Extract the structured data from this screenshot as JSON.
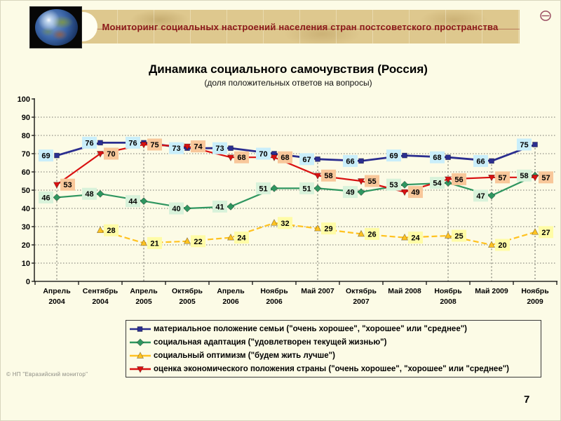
{
  "header": {
    "title": "Мониторинг социальных настроений населения стран постсоветского пространства",
    "banner_color": "#DEC88E",
    "text_color": "#8B1A1A"
  },
  "page": {
    "number": "7",
    "copyright": "© НП \"Евразийский монитор\""
  },
  "chart_data": {
    "type": "line",
    "title": "Динамика социального самочувствия (Россия)",
    "subtitle": "(доля положительных ответов на вопросы)",
    "categories": [
      "Апрель 2004",
      "Сентябрь 2004",
      "Апрель 2005",
      "Октябрь 2005",
      "Апрель 2006",
      "Ноябрь 2006",
      "Май 2007",
      "Октябрь 2007",
      "Май 2008",
      "Ноябрь 2008",
      "Май 2009",
      "Ноябрь 2009"
    ],
    "categories_display": [
      [
        "Апрель",
        "2004"
      ],
      [
        "Сентябрь",
        "2004"
      ],
      [
        "Апрель",
        "2005"
      ],
      [
        "Октябрь",
        "2005"
      ],
      [
        "Апрель",
        "2006"
      ],
      [
        "Ноябрь",
        "2006"
      ],
      [
        "Май 2007",
        ""
      ],
      [
        "Октябрь",
        "2007"
      ],
      [
        "Май 2008",
        ""
      ],
      [
        "Ноябрь",
        "2008"
      ],
      [
        "Май 2009",
        ""
      ],
      [
        "Ноябрь",
        "2009"
      ]
    ],
    "ylim": [
      0,
      100
    ],
    "ytick_step": 10,
    "grid": {
      "horizontal": true,
      "vertical_at_categories": [
        0,
        2,
        6,
        9,
        10,
        11
      ]
    },
    "legend_position": "bottom",
    "axis_color": "#000000",
    "gridline_color": "#777770",
    "series": [
      {
        "name": "материальное положение семьи (\"очень хорошее\", \"хорошее\" или \"среднее\")",
        "color": "#2B2E8F",
        "label_bg": "#C9EEFA",
        "marker": "square",
        "label_side": "left",
        "dash": "solid",
        "values": [
          69,
          76,
          76,
          73,
          73,
          70,
          67,
          66,
          69,
          68,
          66,
          75
        ]
      },
      {
        "name": "социальная адаптация (\"удовлетворен текущей жизнью\")",
        "color": "#2F9660",
        "label_bg": "#D8F2DA",
        "marker": "diamond",
        "label_side": "left",
        "dash": "solid",
        "values": [
          46,
          48,
          44,
          40,
          41,
          51,
          51,
          49,
          53,
          54,
          47,
          58
        ]
      },
      {
        "name": "социальный оптимизм (\"будем жить лучше\")",
        "color": "#FFC221",
        "label_bg": "#FFFCA6",
        "marker": "triangle-up",
        "label_side": "right",
        "dash": "dashed",
        "values": [
          null,
          28,
          21,
          22,
          24,
          32,
          29,
          26,
          24,
          25,
          20,
          27
        ]
      },
      {
        "name": "оценка экономического положения страны (\"очень хорошее\", \"хорошее\" или \"среднее\")",
        "color": "#D91111",
        "label_bg": "#F8C79A",
        "marker": "triangle-down",
        "label_side": "right",
        "dash": "solid",
        "values": [
          53,
          70,
          75,
          74,
          68,
          68,
          58,
          55,
          49,
          56,
          57,
          57
        ]
      }
    ]
  }
}
